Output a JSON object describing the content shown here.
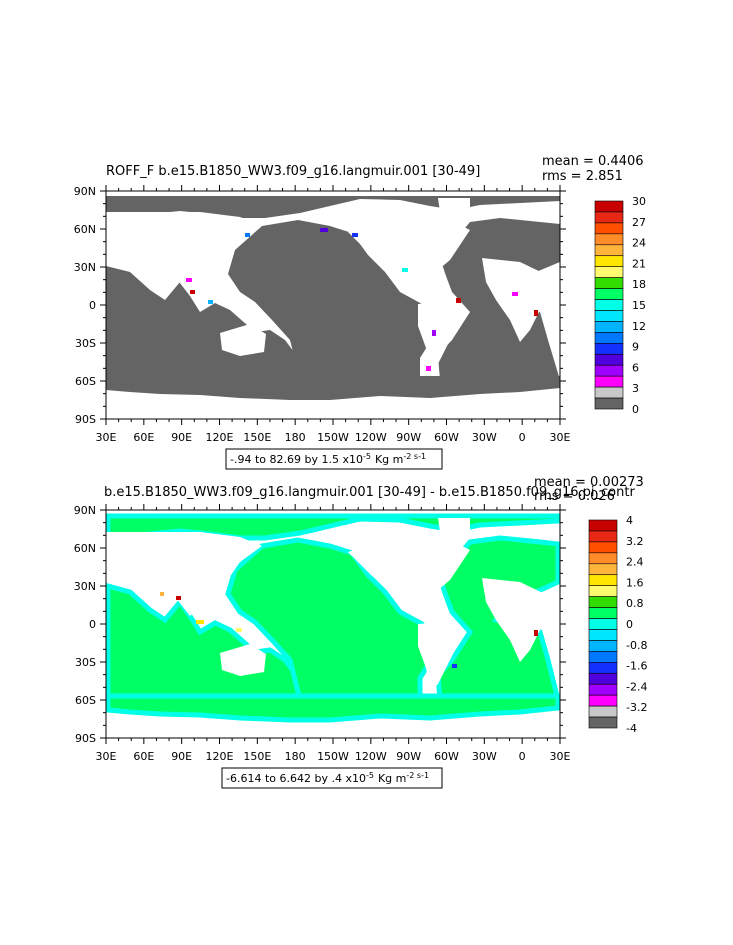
{
  "panels": [
    {
      "title": "ROFF_F  b.e15.B1850_WW3.f09_g16.langmuir.001  [30-49]",
      "mean": "mean = 0.4406",
      "rms": "rms = 2.851",
      "range_text": "-.94 to 82.69 by 1.5 x10",
      "range_exp": "-5",
      "range_units": "Kg m",
      "range_units_exp": "-2 s-1",
      "colorbar": {
        "labels": [
          "30",
          "27",
          "24",
          "21",
          "18",
          "15",
          "12",
          "9",
          "6",
          "3",
          "0"
        ],
        "colors": [
          "#c80000",
          "#e62814",
          "#ff5000",
          "#ff8c28",
          "#ffb43c",
          "#ffe600",
          "#fffa6e",
          "#32dc00",
          "#00ff64",
          "#00ffe6",
          "#00e6ff",
          "#00b4ff",
          "#0078ff",
          "#1432ff",
          "#5000dc",
          "#a000ff",
          "#ff00ff",
          "#c8c8c8",
          "#646464"
        ]
      }
    },
    {
      "title": "b.e15.B1850_WW3.f09_g16.langmuir.001 [30-49] - b.e15.B1850.f09_g16.pi_contr",
      "mean": "mean = 0.00273",
      "rms": "rms = 0.026",
      "range_text": "-6.614 to 6.642 by .4 x10",
      "range_exp": "-5",
      "range_units": "Kg m",
      "range_units_exp": "-2 s-1",
      "colorbar": {
        "labels": [
          "4",
          "3.2",
          "2.4",
          "1.6",
          "0.8",
          "0",
          "-0.8",
          "-1.6",
          "-2.4",
          "-3.2",
          "-4"
        ],
        "colors": [
          "#c80000",
          "#e62814",
          "#ff5000",
          "#ff8c28",
          "#ffb43c",
          "#ffe600",
          "#fffa6e",
          "#32dc00",
          "#00ff64",
          "#00ffe6",
          "#00e6ff",
          "#00b4ff",
          "#0078ff",
          "#1432ff",
          "#5000dc",
          "#a000ff",
          "#ff00ff",
          "#c8c8c8",
          "#646464"
        ]
      }
    }
  ],
  "chart_data": [
    {
      "type": "heatmap",
      "title": "ROFF_F  b.e15.B1850_WW3.f09_g16.langmuir.001  [30-49]",
      "x_ticks": [
        "30E",
        "60E",
        "90E",
        "120E",
        "150E",
        "180",
        "150W",
        "120W",
        "90W",
        "60W",
        "30W",
        "0",
        "30E"
      ],
      "y_ticks": [
        "90N",
        "60N",
        "30N",
        "0",
        "30S",
        "60S",
        "90S"
      ],
      "xlim": [
        30,
        390
      ],
      "ylim": [
        -90,
        90
      ],
      "ocean_value_color": "#646464",
      "land_color": "#ffffff",
      "mean": 0.4406,
      "rms": 2.851,
      "contour_min": -0.94,
      "contour_max": 82.69,
      "contour_interval": 1.5
    },
    {
      "type": "heatmap",
      "title": "b.e15.B1850_WW3.f09_g16.langmuir.001 [30-49] - b.e15.B1850.f09_g16.pi_contr",
      "x_ticks": [
        "30E",
        "60E",
        "90E",
        "120E",
        "150E",
        "180",
        "150W",
        "120W",
        "90W",
        "60W",
        "30W",
        "0",
        "30E"
      ],
      "y_ticks": [
        "90N",
        "60N",
        "30N",
        "0",
        "30S",
        "60S",
        "90S"
      ],
      "xlim": [
        30,
        390
      ],
      "ylim": [
        -90,
        90
      ],
      "ocean_value_color": "#00ff64",
      "coastal_value_color": "#00ffe6",
      "land_color": "#ffffff",
      "mean": 0.00273,
      "rms": 0.026,
      "contour_min": -6.614,
      "contour_max": 6.642,
      "contour_interval": 0.4
    }
  ]
}
